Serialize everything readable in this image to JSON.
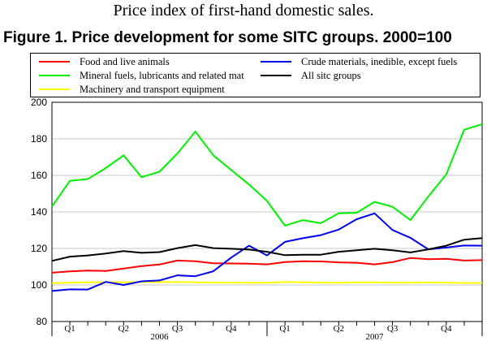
{
  "header": {
    "subtitle": "Price index of first-hand domestic sales.",
    "title": "Figure 1. Price development for some SITC groups. 2000=100"
  },
  "chart_data": {
    "type": "line",
    "title": "Figure 1. Price development for some SITC groups. 2000=100",
    "xlabel": "",
    "ylabel": "",
    "ylim": [
      80,
      200
    ],
    "yticks": [
      80,
      100,
      120,
      140,
      160,
      180,
      200
    ],
    "grid": true,
    "legend_position": "top",
    "months": 24,
    "quarter_labels": [
      "Q1",
      "Q2",
      "Q3",
      "Q4",
      "Q1",
      "Q2",
      "Q3",
      "Q4"
    ],
    "year_labels": [
      {
        "label": "2006",
        "start_month": 1
      },
      {
        "label": "2007",
        "start_month": 13
      }
    ],
    "series": [
      {
        "name": "Food and live animals",
        "color": "#ff0000",
        "values": [
          106.7,
          107.4,
          107.9,
          107.7,
          109,
          110.3,
          111.2,
          113.4,
          113,
          111.9,
          111.8,
          111.7,
          111.3,
          112.6,
          113,
          112.9,
          112.4,
          112.2,
          111.3,
          112.5,
          114.8,
          114.1,
          114.3,
          113.4,
          113.6
        ]
      },
      {
        "name": "Mineral fuels, lubricants and related mat",
        "color": "#00ee00",
        "values": [
          143,
          157,
          158,
          164,
          171,
          159,
          162,
          172,
          184,
          171,
          163,
          155,
          146,
          132.5,
          135.5,
          133.8,
          139.2,
          139.5,
          145.5,
          142.8,
          135.5,
          148.5,
          160.5,
          185,
          188
        ]
      },
      {
        "name": "Machinery and transport equipment",
        "color": "#ffff00",
        "values": [
          101,
          101.3,
          101.5,
          101.4,
          101.5,
          101.6,
          101.6,
          101.6,
          101.5,
          101.3,
          101.3,
          101.2,
          101.2,
          101.6,
          101.5,
          101.3,
          101.2,
          101.4,
          101.4,
          101.3,
          101.3,
          101.4,
          101.2,
          101.1,
          101.1
        ]
      },
      {
        "name": "Crude materials, inedible, except fuels",
        "color": "#0000ee",
        "values": [
          96.7,
          97.6,
          97.5,
          101.7,
          100,
          102,
          102.5,
          105.3,
          104.8,
          107.5,
          115,
          121.5,
          116.2,
          123.6,
          125.6,
          127.3,
          130.3,
          136,
          139.2,
          130.1,
          125.8,
          119.5,
          120.5,
          121.6,
          121.5
        ]
      },
      {
        "name": "All sitc groups",
        "color": "#000000",
        "values": [
          113.2,
          115.5,
          116.2,
          117.2,
          118.6,
          117.6,
          118,
          120.2,
          121.8,
          120.2,
          119.8,
          119.4,
          118.2,
          116.3,
          116.6,
          116.6,
          118.2,
          119,
          119.8,
          119,
          117.8,
          119.5,
          121.5,
          124.8,
          125.7
        ]
      }
    ]
  }
}
